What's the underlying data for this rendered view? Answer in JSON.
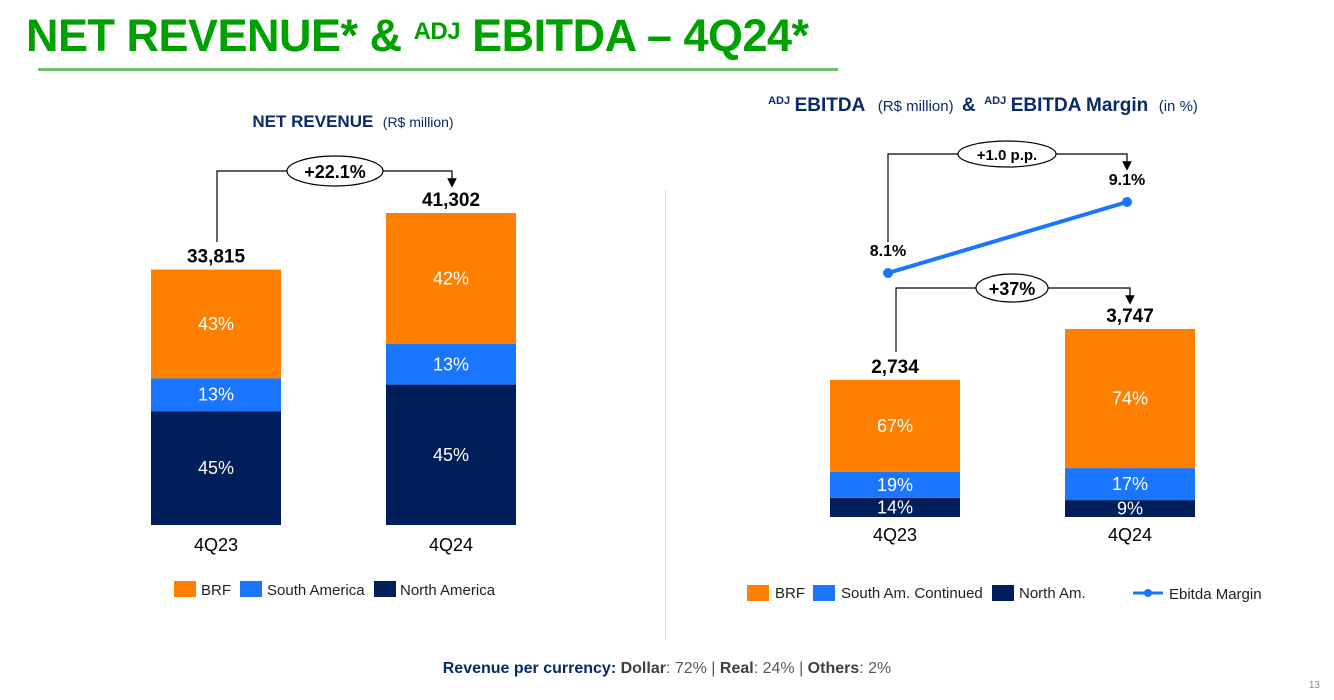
{
  "title": {
    "part1": "NET REVENUE* & ",
    "sup": "ADJ",
    "part2": " EBITDA – 4Q24*"
  },
  "colors": {
    "brf": "#ff8000",
    "south": "#1a75ff",
    "north": "#001e5a",
    "line": "#1a75ff",
    "title": "#00a000",
    "heading": "#0a2a6b"
  },
  "chart_data": [
    {
      "type": "bar",
      "title": "NET REVENUE",
      "subtitle": "(R$ million)",
      "categories": [
        "4Q23",
        "4Q24"
      ],
      "totals": [
        33815,
        41302
      ],
      "total_labels": [
        "33,815",
        "41,302"
      ],
      "series": [
        {
          "name": "North America",
          "values": [
            45,
            45
          ],
          "labels": [
            "45%",
            "45%"
          ]
        },
        {
          "name": "South America",
          "values": [
            13,
            13
          ],
          "labels": [
            "13%",
            "13%"
          ]
        },
        {
          "name": "BRF",
          "values": [
            43,
            42
          ],
          "labels": [
            "43%",
            "42%"
          ]
        }
      ],
      "legend": [
        "BRF",
        "South America",
        "North America"
      ],
      "annotation": "+22.1%"
    },
    {
      "type": "bar",
      "title_sup1": "ADJ",
      "title1": "EBITDA",
      "subtitle1": "(R$ million)",
      "amp": "&",
      "title_sup2": "ADJ",
      "title2": "EBITDA  Margin",
      "subtitle2": "(in %)",
      "categories": [
        "4Q23",
        "4Q24"
      ],
      "totals": [
        2734,
        3747
      ],
      "total_labels": [
        "2,734",
        "3,747"
      ],
      "series": [
        {
          "name": "North Am.",
          "values": [
            14,
            9
          ],
          "labels": [
            "14%",
            "9%"
          ]
        },
        {
          "name": "South Am. Continued",
          "values": [
            19,
            17
          ],
          "labels": [
            "19%",
            "17%"
          ]
        },
        {
          "name": "BRF",
          "values": [
            67,
            74
          ],
          "labels": [
            "67%",
            "74%"
          ]
        }
      ],
      "line_series": {
        "name": "Ebitda Margin",
        "values": [
          8.1,
          9.1
        ],
        "labels": [
          "8.1%",
          "9.1%"
        ]
      },
      "legend": [
        "BRF",
        "South Am. Continued",
        "North Am.",
        "Ebitda Margin"
      ],
      "annotation_bars": "+37%",
      "annotation_line": "+1.0 p.p."
    }
  ],
  "footer": {
    "label": "Revenue per currency:",
    "k1": "Dollar",
    "v1": ": 72%",
    "sep": " | ",
    "k2": "Real",
    "v2": ": 24%",
    "k3": "Others",
    "v3": ": 2%"
  },
  "page_number": "13"
}
